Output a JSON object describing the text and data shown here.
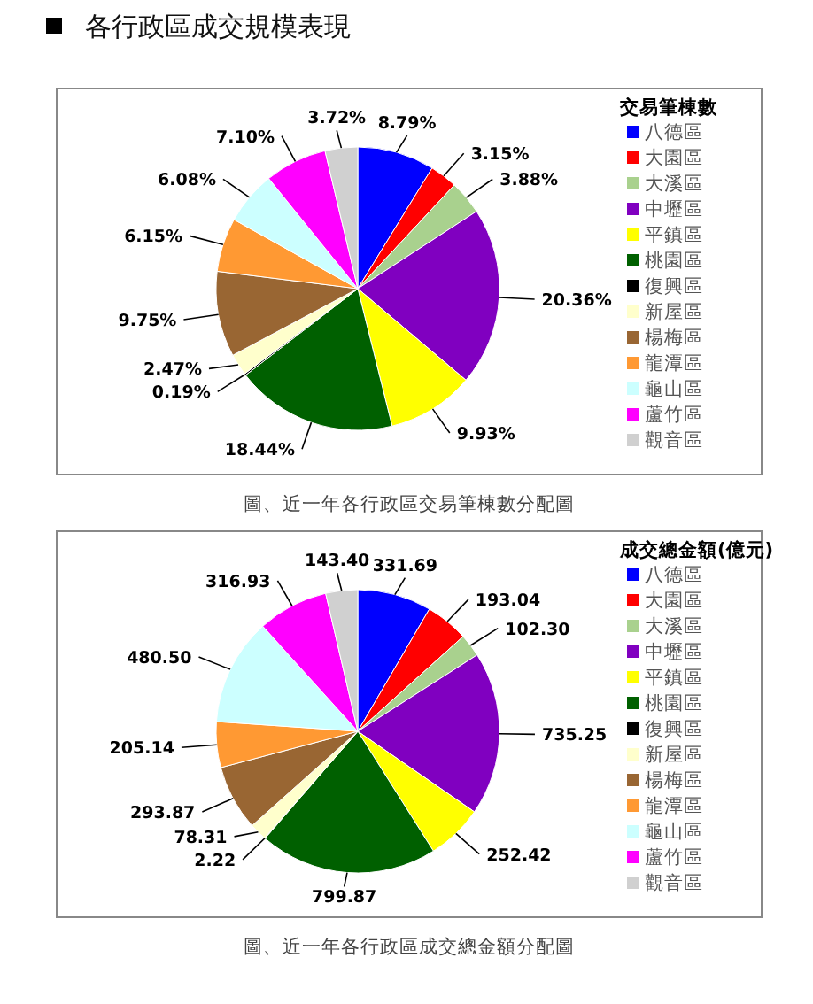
{
  "chart_data": [
    {
      "type": "pie",
      "title": "各行政區成交規模表現",
      "legend_title": "交易筆棟數",
      "legend": "right",
      "categories": [
        "八德區",
        "大園區",
        "大溪區",
        "中壢區",
        "平鎮區",
        "桃園區",
        "復興區",
        "新屋區",
        "楊梅區",
        "龍潭區",
        "龜山區",
        "蘆竹區",
        "觀音區"
      ],
      "values": [
        8.79,
        3.15,
        3.88,
        20.36,
        9.93,
        18.44,
        0.19,
        2.47,
        9.75,
        6.15,
        6.08,
        7.1,
        3.72
      ],
      "value_labels": [
        "8.79%",
        "3.15%",
        "3.88%",
        "20.36%",
        "9.93%",
        "18.44%",
        "0.19%",
        "2.47%",
        "9.75%",
        "6.15%",
        "6.08%",
        "7.10%",
        "3.72%"
      ],
      "colors": [
        "#0000ff",
        "#ff0000",
        "#a9d18e",
        "#8000c0",
        "#ffff00",
        "#006000",
        "#000000",
        "#ffffcc",
        "#996633",
        "#ff9933",
        "#ccffff",
        "#ff00ff",
        "#d0d0d0"
      ],
      "annotations": [
        "圖、近一年各行政區交易筆棟數分配圖"
      ]
    },
    {
      "type": "pie",
      "legend_title": "成交總金額(億元)",
      "legend": "right",
      "categories": [
        "八德區",
        "大園區",
        "大溪區",
        "中壢區",
        "平鎮區",
        "桃園區",
        "復興區",
        "新屋區",
        "楊梅區",
        "龍潭區",
        "龜山區",
        "蘆竹區",
        "觀音區"
      ],
      "values": [
        331.69,
        193.04,
        102.3,
        735.25,
        252.42,
        799.87,
        2.22,
        78.31,
        293.87,
        205.14,
        480.5,
        316.93,
        143.4
      ],
      "value_labels": [
        "331.69",
        "193.04",
        "102.30",
        "735.25",
        "252.42",
        "799.87",
        "2.22",
        "78.31",
        "293.87",
        "205.14",
        "480.50",
        "316.93",
        "143.40"
      ],
      "colors": [
        "#0000ff",
        "#ff0000",
        "#a9d18e",
        "#8000c0",
        "#ffff00",
        "#006000",
        "#000000",
        "#ffffcc",
        "#996633",
        "#ff9933",
        "#ccffff",
        "#ff00ff",
        "#d0d0d0"
      ],
      "annotations": [
        "圖、近一年各行政區成交總金額分配圖"
      ]
    }
  ]
}
